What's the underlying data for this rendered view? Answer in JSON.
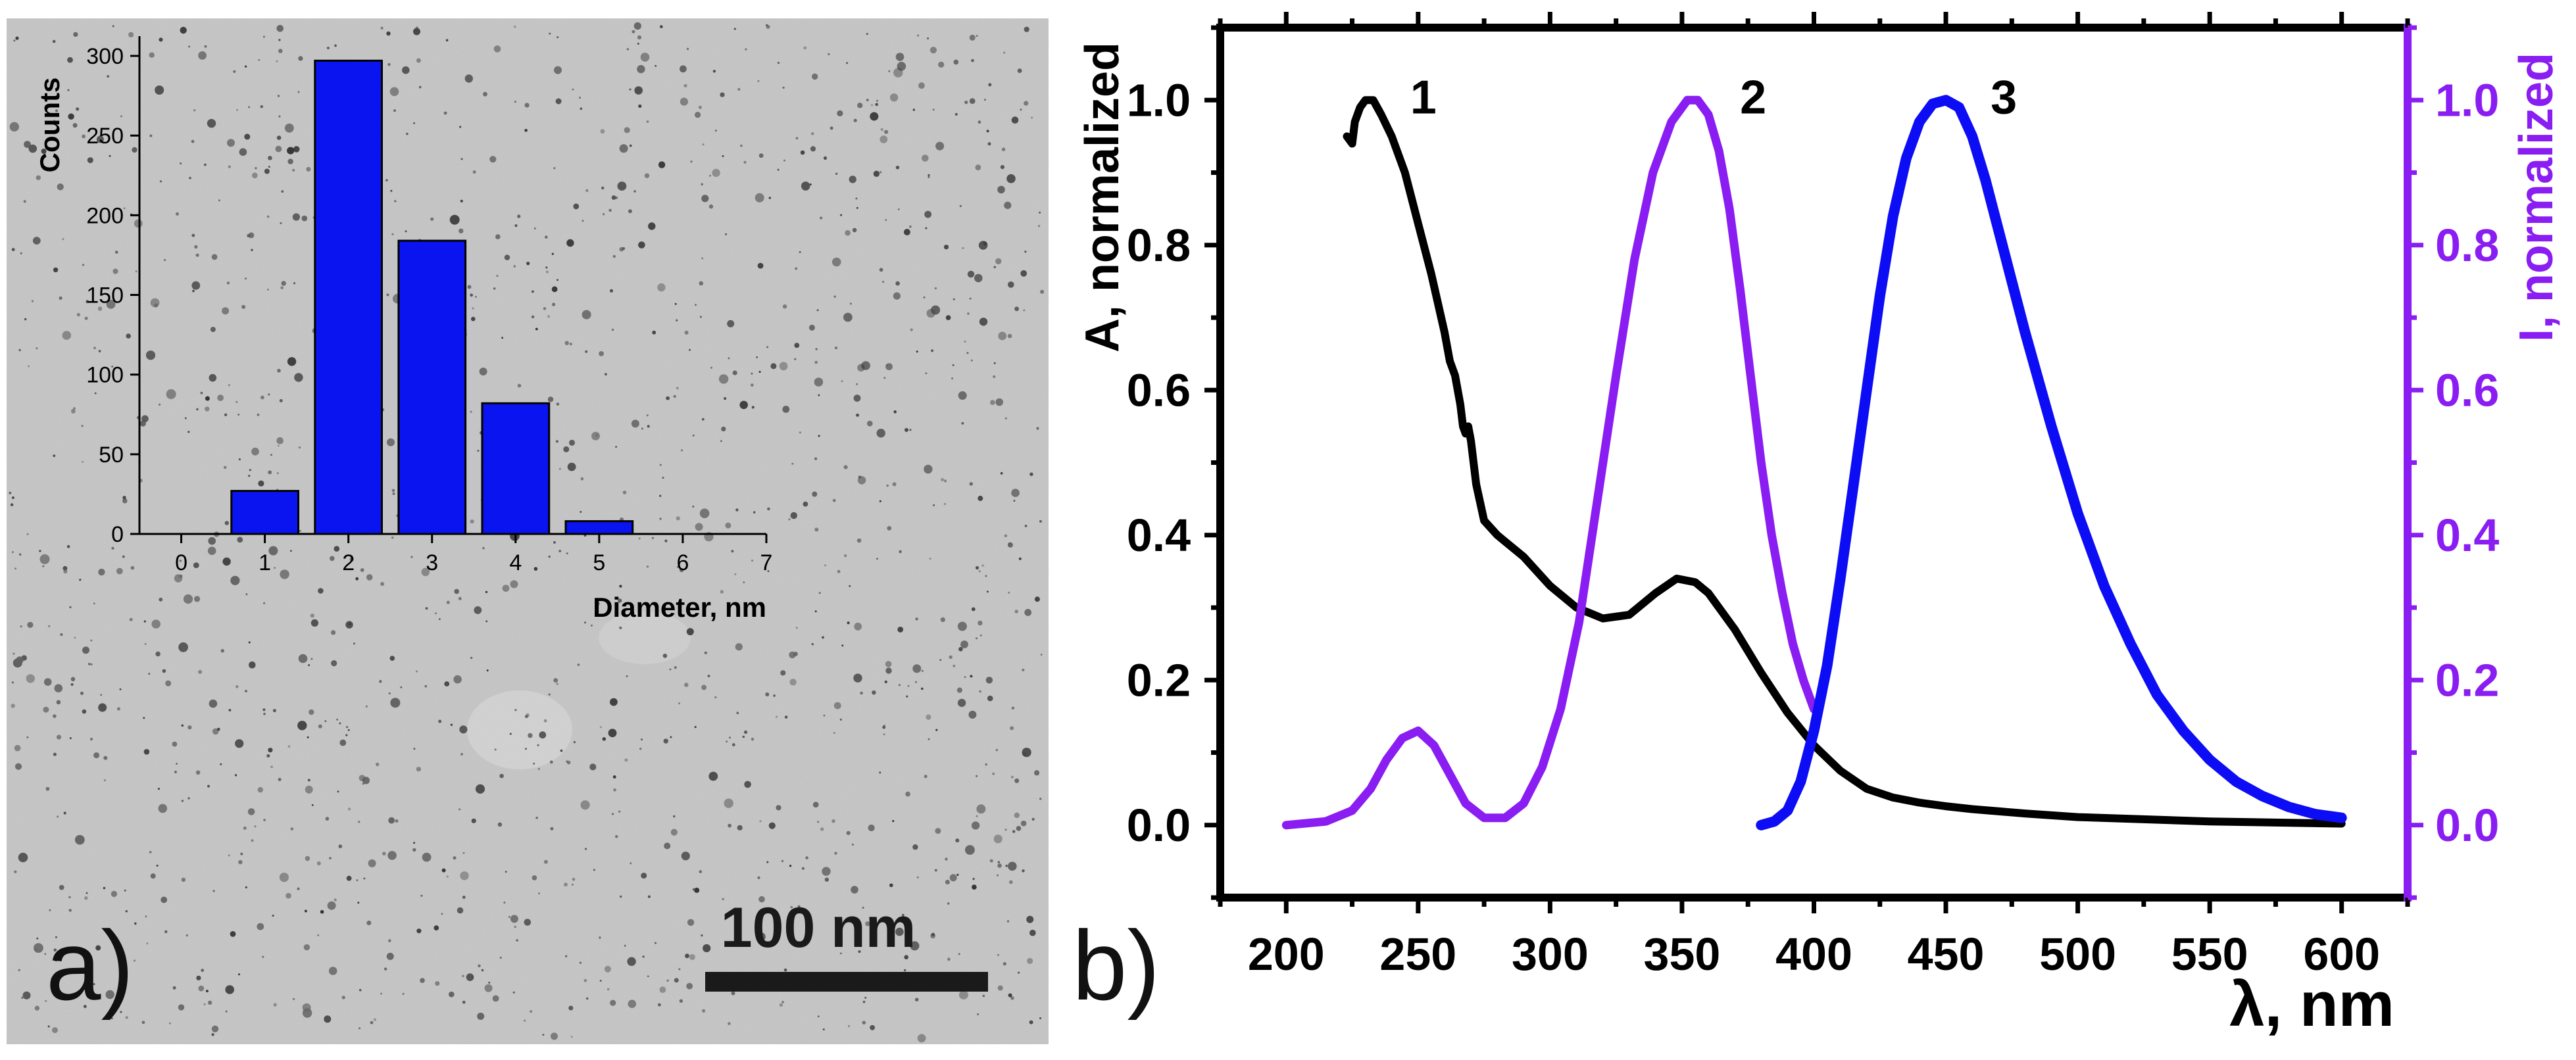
{
  "panel_labels": {
    "a": "a)",
    "b": "b)"
  },
  "scale_bar": {
    "label": "100 nm"
  },
  "colors": {
    "histogram_bar": "#0a14f0",
    "curve1": "#000000",
    "curve2": "#8a1df2",
    "curve3": "#0d0df5",
    "right_axis": "#8a1df2",
    "tem_background": "#c9c9c9"
  },
  "chart_data": [
    {
      "id": "histogram",
      "type": "bar",
      "title": "",
      "xlabel": "Diameter, nm",
      "ylabel": "Counts",
      "xlim": [
        -0.5,
        7
      ],
      "ylim": [
        0,
        300
      ],
      "x_ticks": [
        0,
        1,
        2,
        3,
        4,
        5,
        6,
        7
      ],
      "y_ticks": [
        0,
        50,
        100,
        150,
        200,
        250,
        300
      ],
      "categories": [
        "1",
        "2",
        "3",
        "4",
        "5"
      ],
      "x": [
        1,
        2,
        3,
        4,
        5
      ],
      "bar_width": 0.8,
      "values": [
        27,
        297,
        184,
        82,
        8
      ]
    },
    {
      "id": "spectra",
      "type": "line",
      "xlabel": "λ, nm",
      "ylabel_left": "A, normalized",
      "ylabel_right": "I, normalized",
      "xlim": [
        175,
        625
      ],
      "ylim": [
        -0.1,
        1.1
      ],
      "x_ticks": [
        200,
        250,
        300,
        350,
        400,
        450,
        500,
        550,
        600
      ],
      "y_ticks": [
        "0.0",
        "0.2",
        "0.4",
        "0.6",
        "0.8",
        "1.0"
      ],
      "series": [
        {
          "name": "1",
          "axis": "left",
          "x": [
            223,
            225,
            226,
            228,
            230,
            233,
            236,
            240,
            245,
            250,
            255,
            260,
            262,
            264,
            266,
            267,
            268,
            269,
            270,
            272,
            275,
            280,
            290,
            300,
            310,
            320,
            330,
            340,
            348,
            355,
            360,
            370,
            380,
            390,
            400,
            410,
            420,
            430,
            440,
            450,
            460,
            480,
            500,
            550,
            600
          ],
          "y": [
            0.95,
            0.94,
            0.97,
            0.99,
            1.0,
            1.0,
            0.98,
            0.95,
            0.9,
            0.83,
            0.76,
            0.68,
            0.64,
            0.62,
            0.58,
            0.55,
            0.54,
            0.55,
            0.53,
            0.47,
            0.42,
            0.4,
            0.37,
            0.33,
            0.3,
            0.285,
            0.29,
            0.32,
            0.34,
            0.335,
            0.32,
            0.27,
            0.21,
            0.155,
            0.11,
            0.075,
            0.05,
            0.038,
            0.031,
            0.026,
            0.022,
            0.016,
            0.011,
            0.005,
            0.002
          ]
        },
        {
          "name": "2",
          "axis": "right",
          "x": [
            200,
            215,
            225,
            232,
            238,
            244,
            250,
            256,
            262,
            268,
            275,
            283,
            290,
            297,
            304,
            311,
            318,
            325,
            332,
            339,
            346,
            352,
            356,
            360,
            364,
            368,
            372,
            376,
            380,
            384,
            388,
            392,
            396,
            400
          ],
          "y": [
            0.0,
            0.005,
            0.02,
            0.05,
            0.09,
            0.12,
            0.13,
            0.11,
            0.07,
            0.03,
            0.01,
            0.01,
            0.03,
            0.08,
            0.16,
            0.28,
            0.45,
            0.62,
            0.78,
            0.9,
            0.97,
            1.0,
            1.0,
            0.98,
            0.93,
            0.85,
            0.74,
            0.62,
            0.5,
            0.4,
            0.32,
            0.25,
            0.2,
            0.16
          ]
        },
        {
          "name": "3",
          "axis": "right",
          "x": [
            380,
            385,
            390,
            395,
            400,
            405,
            410,
            415,
            420,
            425,
            430,
            435,
            440,
            445,
            450,
            455,
            460,
            465,
            470,
            475,
            480,
            490,
            500,
            510,
            520,
            530,
            540,
            550,
            560,
            570,
            580,
            590,
            600
          ],
          "y": [
            0.0,
            0.005,
            0.02,
            0.06,
            0.13,
            0.22,
            0.34,
            0.47,
            0.6,
            0.73,
            0.84,
            0.92,
            0.97,
            0.995,
            1.0,
            0.99,
            0.95,
            0.89,
            0.82,
            0.75,
            0.68,
            0.55,
            0.43,
            0.33,
            0.25,
            0.18,
            0.13,
            0.09,
            0.06,
            0.04,
            0.025,
            0.015,
            0.01
          ]
        }
      ],
      "curve_labels": [
        "1",
        "2",
        "3"
      ]
    }
  ]
}
